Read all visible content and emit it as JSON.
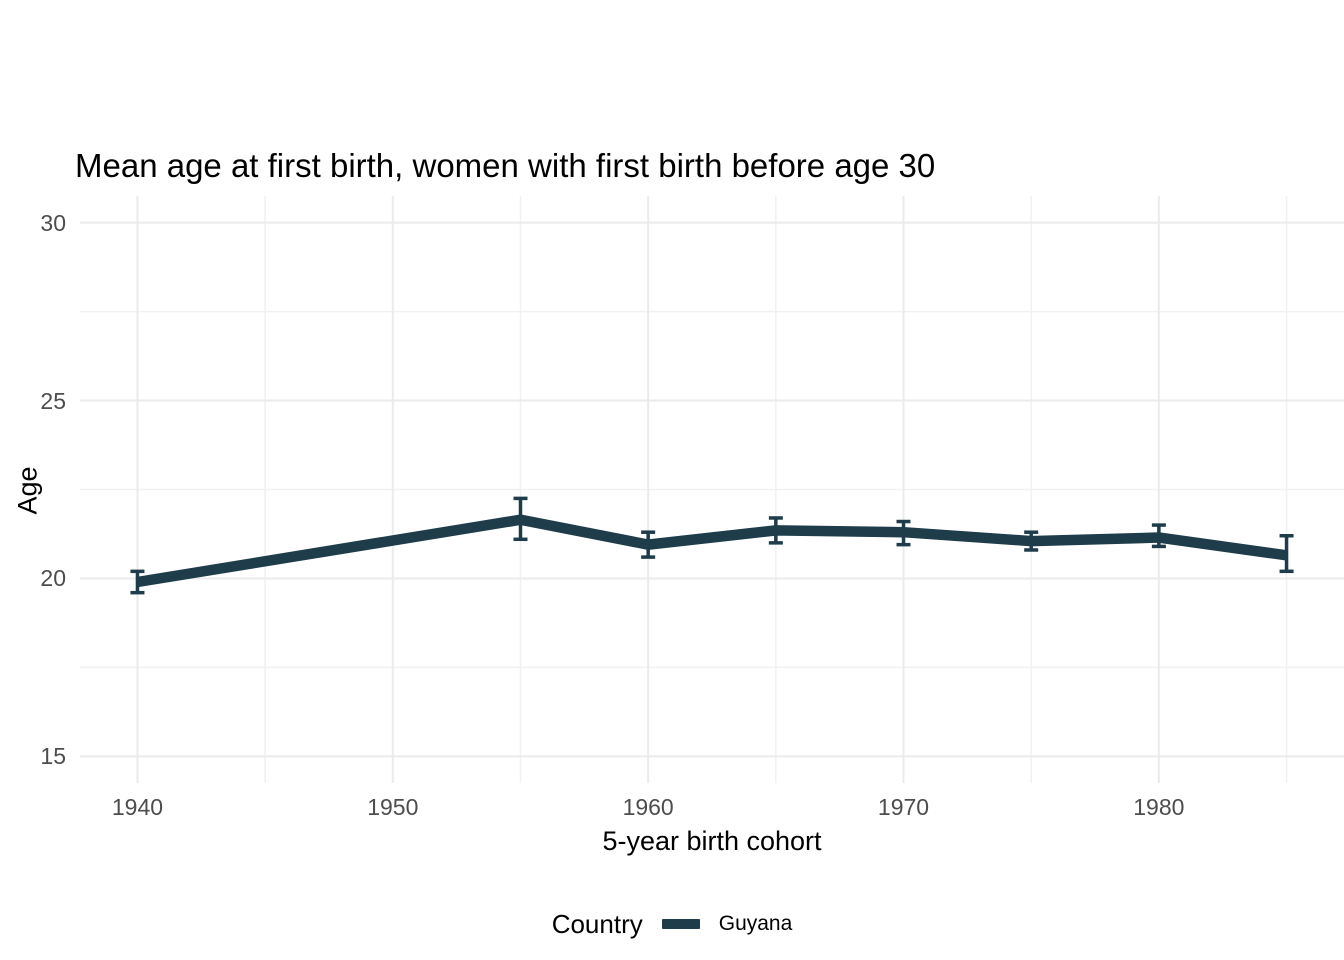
{
  "chart_data": {
    "type": "line",
    "title": "Mean age at first birth, women with first birth before age 30",
    "xlabel": "5-year birth cohort",
    "ylabel": "Age",
    "x": [
      1940,
      1955,
      1960,
      1965,
      1970,
      1975,
      1980,
      1985
    ],
    "series": [
      {
        "name": "Guyana",
        "color": "#1e3c49",
        "values": [
          19.9,
          21.65,
          20.95,
          21.35,
          21.3,
          21.05,
          21.15,
          20.65
        ],
        "ci_low": [
          19.6,
          21.1,
          20.6,
          21.0,
          20.95,
          20.8,
          20.9,
          20.2
        ],
        "ci_high": [
          20.2,
          22.25,
          21.3,
          21.7,
          21.6,
          21.3,
          21.5,
          21.2
        ]
      }
    ],
    "x_ticks": [
      1940,
      1950,
      1960,
      1970,
      1980
    ],
    "y_ticks": [
      15,
      20,
      25,
      30
    ],
    "x_minor_ticks": [
      1945,
      1955,
      1965,
      1975,
      1985
    ],
    "y_minor_ticks": [
      17.5,
      22.5,
      27.5
    ],
    "xlim": [
      1937.75,
      1987.25
    ],
    "ylim": [
      14.25,
      30.75
    ],
    "grid": true,
    "legend": {
      "title": "Country",
      "position": "bottom",
      "entries": [
        {
          "label": "Guyana",
          "color": "#1e3c49"
        }
      ]
    }
  },
  "colors": {
    "background": "#ffffff",
    "grid_major": "#ebebeb",
    "grid_minor": "#f1f1f1",
    "tick_text": "#4d4d4d",
    "title_text": "#000000",
    "series": "#1e3c49"
  }
}
